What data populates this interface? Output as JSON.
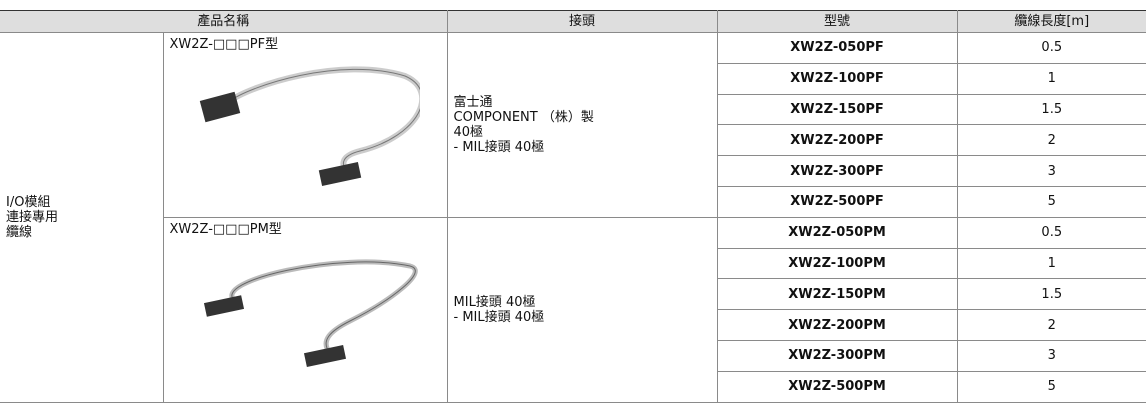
{
  "table": {
    "header": [
      "產品名稱",
      "接頭",
      "型號",
      "纜線長度[m]"
    ],
    "category": [
      "I/O模組",
      "連接專用",
      "纜線"
    ],
    "groups": [
      {
        "product": "XW2Z-□□□PF型",
        "connector": [
          "富士通",
          "COMPONENT （株）製",
          "40極",
          "- MIL接頭 40極"
        ],
        "rows": [
          {
            "model": "XW2Z-050PF",
            "length": 0.5
          },
          {
            "model": "XW2Z-100PF",
            "length": 1
          },
          {
            "model": "XW2Z-150PF",
            "length": 1.5
          },
          {
            "model": "XW2Z-200PF",
            "length": 2
          },
          {
            "model": "XW2Z-300PF",
            "length": 3
          },
          {
            "model": "XW2Z-500PF",
            "length": 5
          }
        ]
      },
      {
        "product": "XW2Z-□□□PM型",
        "connector": [
          "MIL接頭 40極",
          "- MIL接頭 40極"
        ],
        "rows": [
          {
            "model": "XW2Z-050PM",
            "length": 0.5
          },
          {
            "model": "XW2Z-100PM",
            "length": 1
          },
          {
            "model": "XW2Z-150PM",
            "length": 1.5
          },
          {
            "model": "XW2Z-200PM",
            "length": 2
          },
          {
            "model": "XW2Z-300PM",
            "length": 3
          },
          {
            "model": "XW2Z-500PM",
            "length": 5
          }
        ]
      }
    ]
  }
}
